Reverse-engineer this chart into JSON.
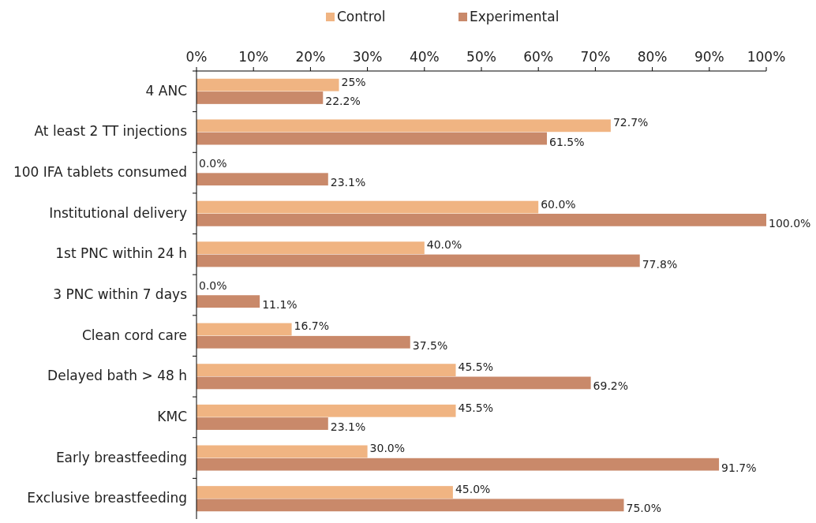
{
  "chart_data": {
    "type": "bar",
    "orientation": "horizontal",
    "categories": [
      "4 ANC",
      "At least 2 TT injections",
      "100 IFA tablets consumed",
      "Institutional delivery",
      "1st PNC within 24 h",
      "3 PNC within 7 days",
      "Clean cord care",
      "Delayed bath > 48 h",
      "KMC",
      "Early breastfeeding",
      "Exclusive breastfeeding"
    ],
    "series": [
      {
        "name": "Control",
        "color": "#f0b482",
        "values": [
          25,
          72.7,
          0,
          60,
          40,
          0,
          16.7,
          45.5,
          45.5,
          30,
          45
        ],
        "value_labels": [
          "25%",
          "72.7%",
          "0.0%",
          "60.0%",
          "40.0%",
          "0.0%",
          "16.7%",
          "45.5%",
          "45.5%",
          "30.0%",
          "45.0%"
        ]
      },
      {
        "name": "Experimental",
        "color": "#c9896a",
        "values": [
          22.2,
          61.5,
          23.1,
          100,
          77.8,
          11.1,
          37.5,
          69.2,
          23.1,
          91.7,
          75
        ],
        "value_labels": [
          "22.2%",
          "61.5%",
          "23.1%",
          "100.0%",
          "77.8%",
          "11.1%",
          "37.5%",
          "69.2%",
          "23.1%",
          "91.7%",
          "75.0%"
        ]
      }
    ],
    "xlim": [
      0,
      100
    ],
    "xticks": [
      {
        "value": 0,
        "label": "0%"
      },
      {
        "value": 10,
        "label": "10%"
      },
      {
        "value": 20,
        "label": "20%"
      },
      {
        "value": 30,
        "label": "30%"
      },
      {
        "value": 40,
        "label": "40%"
      },
      {
        "value": 50,
        "label": "50%"
      },
      {
        "value": 60,
        "label": "60%"
      },
      {
        "value": 70,
        "label": "70%"
      },
      {
        "value": 80,
        "label": "80%"
      },
      {
        "value": 90,
        "label": "90%"
      },
      {
        "value": 100,
        "label": "100%"
      }
    ],
    "legend": "top",
    "grid": false
  }
}
